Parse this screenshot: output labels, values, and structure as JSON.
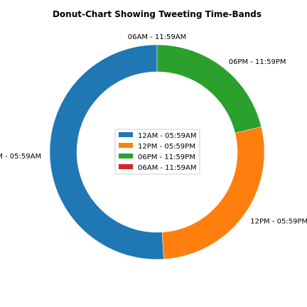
{
  "chart_data": {
    "type": "pie",
    "variant": "donut",
    "title": "Donut-Chart Showing Tweeting Time-Bands",
    "categories": [
      "12AM - 05:59AM",
      "12PM - 05:59PM",
      "06PM - 11:59PM",
      "06AM - 11:59AM"
    ],
    "values": [
      51.0,
      27.8,
      21.2,
      0.0
    ],
    "colors": [
      "#1f77b4",
      "#ff7f0e",
      "#2ca02c",
      "#d62728"
    ],
    "legend": {
      "placement": "center",
      "entries": [
        "12AM - 05:59AM",
        "12PM - 05:59PM",
        "06PM - 11:59PM",
        "06AM - 11:59AM"
      ]
    }
  }
}
